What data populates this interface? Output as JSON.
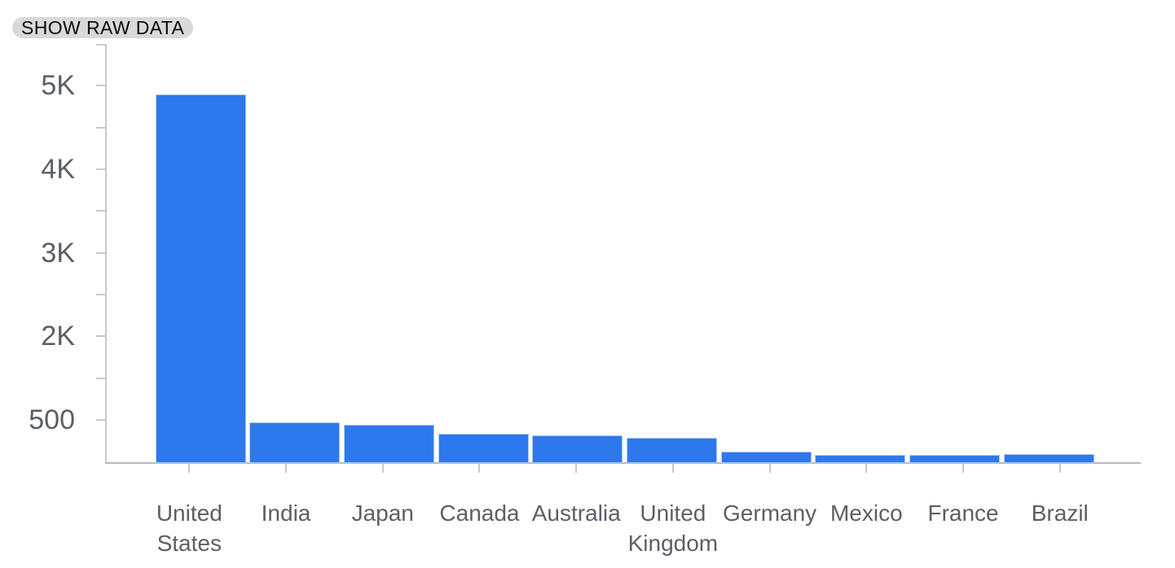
{
  "controls": {
    "show_raw_data_label": "SHOW RAW DATA"
  },
  "chart_data": {
    "type": "bar",
    "title": "",
    "xlabel": "",
    "ylabel": "",
    "categories": [
      "United States",
      "India",
      "Japan",
      "Canada",
      "Australia",
      "United Kingdom",
      "Germany",
      "Mexico",
      "France",
      "Brazil"
    ],
    "values": [
      4900,
      470,
      440,
      340,
      320,
      295,
      140,
      98,
      98,
      105
    ],
    "y_tick_labels": [
      "5K",
      "4K",
      "3K",
      "2K",
      "500"
    ],
    "y_tick_values": [
      5000,
      4000,
      3000,
      2000,
      500
    ],
    "ylim": [
      0,
      5500
    ],
    "grid": false,
    "legend": null,
    "bar_color": "#2e78ee",
    "bar_border_color": "#aecbfa",
    "axis_color": "#c7c9cb",
    "label_color": "#5b5f66"
  }
}
